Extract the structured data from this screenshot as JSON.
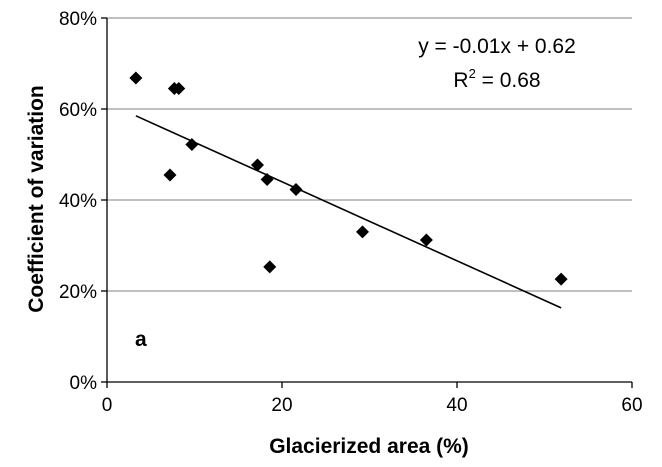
{
  "chart_data": {
    "type": "scatter",
    "xlabel": "Glacierized area (%)",
    "ylabel": "Coefficient of variation",
    "xlim": [
      0,
      60
    ],
    "ylim": [
      0,
      0.8
    ],
    "x_ticks": [
      0,
      20,
      40,
      60
    ],
    "y_ticks": [
      0,
      0.2,
      0.4,
      0.6,
      0.8
    ],
    "x_tick_labels": [
      "0",
      "20",
      "40",
      "60"
    ],
    "y_tick_labels": [
      "0%",
      "20%",
      "40%",
      "60%",
      "80%"
    ],
    "grid": "horizontal",
    "marker": "diamond",
    "colors": {
      "marker": "#000000",
      "grid": "#808080",
      "axis": "#000000"
    },
    "points": [
      {
        "x": 3.3,
        "y": 0.668
      },
      {
        "x": 7.7,
        "y": 0.645
      },
      {
        "x": 8.2,
        "y": 0.645
      },
      {
        "x": 9.7,
        "y": 0.522
      },
      {
        "x": 7.2,
        "y": 0.455
      },
      {
        "x": 17.2,
        "y": 0.477
      },
      {
        "x": 18.3,
        "y": 0.445
      },
      {
        "x": 21.6,
        "y": 0.423
      },
      {
        "x": 18.6,
        "y": 0.253
      },
      {
        "x": 29.2,
        "y": 0.33
      },
      {
        "x": 36.5,
        "y": 0.312
      },
      {
        "x": 51.9,
        "y": 0.226
      }
    ],
    "trendline": {
      "x": [
        3.3,
        51.9
      ],
      "y": [
        0.585,
        0.163
      ]
    },
    "equation_text": "y = -0.01x + 0.62",
    "r2_prefix": "R",
    "r2_sup": "2",
    "r2_suffix": " = 0.68",
    "panel_label": "a"
  }
}
